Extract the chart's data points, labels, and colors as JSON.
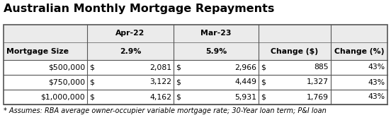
{
  "title": "Australian Monthly Mortgage Repayments",
  "rows": [
    [
      "$500,000",
      "$",
      "2,081",
      "$",
      "2,966",
      "$",
      "885",
      "43%"
    ],
    [
      "$750,000",
      "$",
      "3,122",
      "$",
      "4,449",
      "$",
      "1,327",
      "43%"
    ],
    [
      "$1,000,000",
      "$",
      "4,162",
      "$",
      "5,931",
      "$",
      "1,769",
      "43%"
    ]
  ],
  "footnote": "* Assumes: RBA average owner-occupier variable mortgage rate; 30-Year loan term; P&I loan",
  "bg_color": "#ebebeb",
  "white": "#ffffff",
  "border_color": "#555555",
  "title_fontsize": 11.5,
  "header_fontsize": 7.8,
  "cell_fontsize": 7.8,
  "footnote_fontsize": 7.0
}
